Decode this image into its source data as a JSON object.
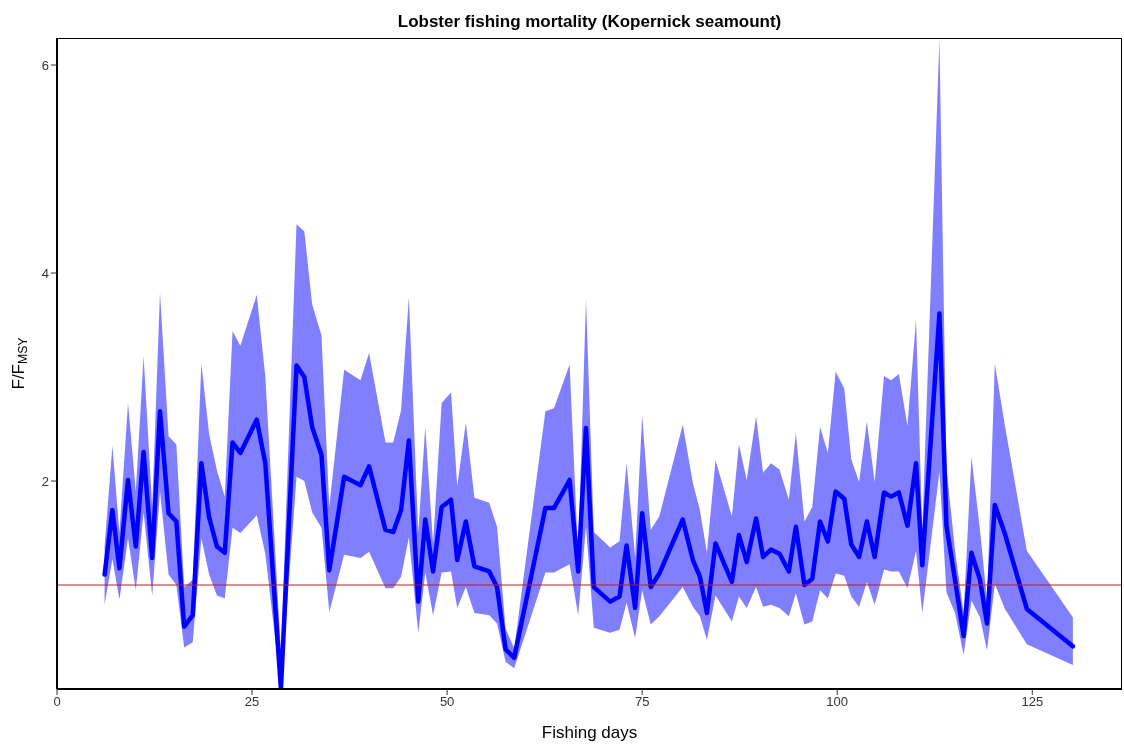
{
  "chart_data": {
    "type": "line",
    "title": "Lobster fishing mortality (Kopernick seamount)",
    "xlabel": "Fishing days",
    "ylabel": "F/F$_{MSY}$",
    "x": [
      6.1,
      7.1,
      8.0,
      9.1,
      10.1,
      11.1,
      12.2,
      13.2,
      14.3,
      15.3,
      16.3,
      17.4,
      18.5,
      19.5,
      20.5,
      21.5,
      22.5,
      23.5,
      25.6,
      26.7,
      28.7,
      30.7,
      31.7,
      32.7,
      33.9,
      34.9,
      36.8,
      38.9,
      40.0,
      42.1,
      43.1,
      44.1,
      45.1,
      46.3,
      47.2,
      48.2,
      49.3,
      50.5,
      51.3,
      52.4,
      53.5,
      55.4,
      56.4,
      57.5,
      58.6,
      62.6,
      63.7,
      65.7,
      66.8,
      67.8,
      68.8,
      70.9,
      72.1,
      73.0,
      74.1,
      75.0,
      76.1,
      77.2,
      80.2,
      81.5,
      82.4,
      83.3,
      84.4,
      86.5,
      87.4,
      88.4,
      89.6,
      90.5,
      91.5,
      92.6,
      93.8,
      94.7,
      95.8,
      96.8,
      97.8,
      98.8,
      99.8,
      100.9,
      101.8,
      102.8,
      103.8,
      104.8,
      106.0,
      106.9,
      107.9,
      109.0,
      110.1,
      110.9,
      113.1,
      114.0,
      115.1,
      116.2,
      117.2,
      118.3,
      119.2,
      120.2,
      121.5,
      124.3,
      130.2
    ],
    "series": [
      {
        "color": "#0000ff",
        "values": [
          1.1,
          1.72,
          1.16,
          2.01,
          1.37,
          2.28,
          1.26,
          2.67,
          1.69,
          1.61,
          0.6,
          0.71,
          2.17,
          1.65,
          1.37,
          1.31,
          2.37,
          2.27,
          2.59,
          2.17,
          0.0,
          3.11,
          3.0,
          2.52,
          2.25,
          1.14,
          2.04,
          1.96,
          2.14,
          1.53,
          1.51,
          1.72,
          2.39,
          0.84,
          1.63,
          1.13,
          1.75,
          1.82,
          1.24,
          1.61,
          1.18,
          1.13,
          0.98,
          0.38,
          0.3,
          1.74,
          1.74,
          2.01,
          1.13,
          2.51,
          0.98,
          0.84,
          0.89,
          1.38,
          0.78,
          1.69,
          0.98,
          1.11,
          1.63,
          1.24,
          1.08,
          0.73,
          1.4,
          1.03,
          1.48,
          1.22,
          1.64,
          1.27,
          1.34,
          1.3,
          1.13,
          1.56,
          1.0,
          1.06,
          1.61,
          1.42,
          1.9,
          1.83,
          1.39,
          1.27,
          1.61,
          1.27,
          1.89,
          1.85,
          1.89,
          1.57,
          2.17,
          1.19,
          3.61,
          1.57,
          1.05,
          0.51,
          1.31,
          1.05,
          0.63,
          1.77,
          1.49,
          0.77,
          0.41
        ],
        "lower": [
          0.81,
          1.25,
          0.86,
          1.45,
          0.95,
          1.7,
          0.9,
          1.9,
          1.1,
          1.0,
          0.4,
          0.45,
          1.45,
          1.1,
          0.9,
          0.87,
          1.55,
          1.5,
          1.67,
          1.3,
          0.0,
          2.04,
          2.0,
          1.7,
          1.55,
          0.74,
          1.29,
          1.26,
          1.32,
          0.97,
          0.97,
          1.08,
          1.46,
          0.54,
          1.12,
          0.71,
          1.12,
          1.13,
          0.78,
          0.98,
          0.73,
          0.71,
          0.63,
          0.26,
          0.2,
          1.12,
          1.12,
          1.2,
          0.71,
          1.56,
          0.59,
          0.54,
          0.57,
          0.83,
          0.49,
          0.95,
          0.62,
          0.7,
          0.98,
          0.79,
          0.7,
          0.47,
          0.9,
          0.65,
          0.89,
          0.78,
          0.98,
          0.79,
          0.81,
          0.78,
          0.7,
          0.92,
          0.62,
          0.65,
          0.95,
          0.87,
          1.11,
          1.09,
          0.89,
          0.79,
          1.03,
          0.81,
          1.15,
          1.13,
          1.13,
          0.97,
          1.33,
          0.73,
          2.09,
          0.93,
          0.73,
          0.33,
          0.85,
          0.69,
          0.37,
          1.01,
          0.77,
          0.43,
          0.23
        ],
        "upper": [
          1.37,
          2.34,
          1.5,
          2.75,
          1.9,
          3.2,
          1.75,
          3.81,
          2.43,
          2.35,
          0.98,
          1.05,
          3.13,
          2.45,
          2.1,
          1.85,
          3.44,
          3.3,
          3.79,
          3.0,
          0.35,
          4.47,
          4.4,
          3.7,
          3.4,
          1.75,
          3.07,
          2.97,
          3.23,
          2.37,
          2.37,
          2.68,
          3.77,
          1.5,
          2.52,
          1.4,
          2.75,
          2.85,
          1.95,
          2.56,
          1.84,
          1.79,
          1.56,
          0.58,
          0.39,
          2.67,
          2.7,
          3.12,
          1.28,
          3.75,
          1.51,
          1.36,
          1.42,
          2.17,
          1.27,
          2.63,
          1.53,
          1.66,
          2.54,
          1.98,
          1.72,
          1.31,
          2.2,
          1.66,
          2.35,
          2.01,
          2.62,
          2.08,
          2.17,
          2.11,
          1.82,
          2.46,
          1.61,
          1.75,
          2.52,
          2.27,
          3.05,
          2.89,
          2.21,
          1.99,
          2.57,
          1.99,
          3.01,
          2.97,
          3.03,
          2.53,
          3.55,
          1.53,
          6.25,
          2.13,
          1.33,
          0.73,
          2.23,
          1.53,
          0.85,
          3.13,
          2.53,
          1.33,
          0.69
        ]
      }
    ],
    "xlim": [
      0,
      136.5
    ],
    "xticks": [
      0,
      25,
      50,
      75,
      100,
      125
    ],
    "ylim": [
      0,
      6.26
    ],
    "yticks": [
      2,
      4,
      6
    ],
    "ref_lines": [
      {
        "axis": "y",
        "value": 1,
        "color": "#b22222"
      }
    ],
    "grid": false,
    "legend": false,
    "marker": "none",
    "line_style": "solid"
  }
}
